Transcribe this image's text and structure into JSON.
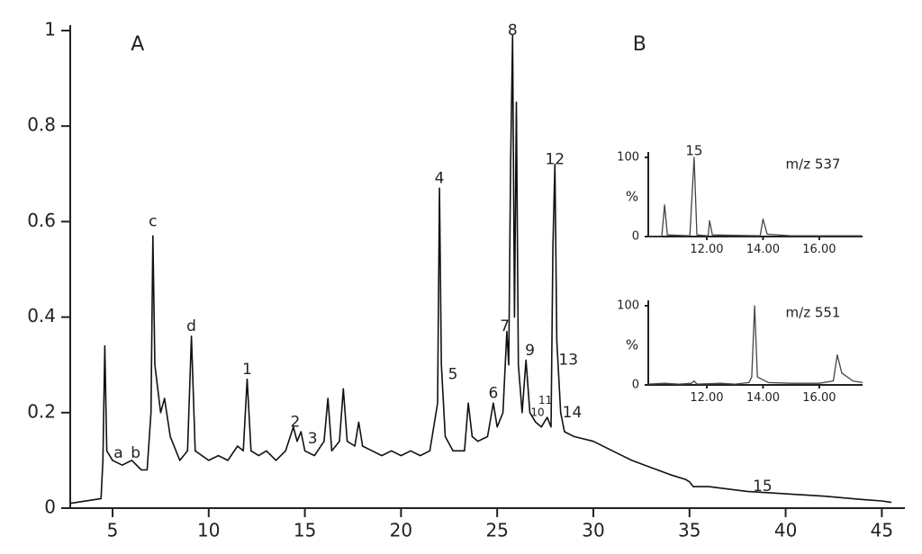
{
  "chart_data": [
    {
      "type": "line",
      "color": "#111111",
      "x": [
        2.8,
        4.4,
        4.5,
        4.6,
        4.7,
        5.0,
        5.5,
        6.0,
        6.5,
        6.8,
        7.0,
        7.1,
        7.2,
        7.5,
        7.7,
        8.0,
        8.5,
        8.9,
        9.1,
        9.3,
        10,
        10.5,
        11,
        11.5,
        11.8,
        12.0,
        12.2,
        12.6,
        13,
        13.5,
        14,
        14.4,
        14.6,
        14.8,
        15.0,
        15.5,
        16.0,
        16.2,
        16.4,
        16.8,
        17.0,
        17.2,
        17.6,
        17.8,
        18.0,
        18.5,
        19,
        19.5,
        20,
        20.5,
        21,
        21.5,
        21.9,
        22.0,
        22.1,
        22.3,
        22.7,
        23.3,
        23.5,
        23.7,
        24,
        24.5,
        24.8,
        25.0,
        25.3,
        25.5,
        25.6,
        25.7,
        25.8,
        25.9,
        26.0,
        26.1,
        26.3,
        26.5,
        26.7,
        27,
        27.3,
        27.6,
        27.8,
        27.9,
        28.0,
        28.1,
        28.3,
        28.5,
        29,
        30,
        31,
        32,
        33,
        34,
        34.8,
        35,
        35.2,
        36,
        38,
        40,
        42,
        44,
        45,
        45.5
      ],
      "values": [
        0.01,
        0.02,
        0.1,
        0.34,
        0.12,
        0.1,
        0.09,
        0.1,
        0.08,
        0.08,
        0.2,
        0.57,
        0.3,
        0.2,
        0.23,
        0.15,
        0.1,
        0.12,
        0.36,
        0.12,
        0.1,
        0.11,
        0.1,
        0.13,
        0.12,
        0.27,
        0.12,
        0.11,
        0.12,
        0.1,
        0.12,
        0.17,
        0.14,
        0.16,
        0.12,
        0.11,
        0.14,
        0.23,
        0.12,
        0.14,
        0.25,
        0.14,
        0.13,
        0.18,
        0.13,
        0.12,
        0.11,
        0.12,
        0.11,
        0.12,
        0.11,
        0.12,
        0.22,
        0.67,
        0.3,
        0.15,
        0.12,
        0.12,
        0.22,
        0.15,
        0.14,
        0.15,
        0.22,
        0.17,
        0.2,
        0.37,
        0.3,
        0.72,
        0.99,
        0.4,
        0.85,
        0.3,
        0.2,
        0.31,
        0.2,
        0.18,
        0.17,
        0.19,
        0.17,
        0.55,
        0.72,
        0.35,
        0.2,
        0.16,
        0.15,
        0.14,
        0.12,
        0.1,
        0.085,
        0.07,
        0.06,
        0.055,
        0.045,
        0.045,
        0.035,
        0.03,
        0.025,
        0.018,
        0.015,
        0.012
      ],
      "xlim": [
        2.8,
        46.2
      ],
      "ylim": [
        0,
        1
      ],
      "xticks": [
        5,
        10,
        15,
        20,
        25,
        30,
        35,
        40,
        45
      ],
      "yticks": [
        0,
        0.2,
        0.4,
        0.6,
        0.8,
        1
      ],
      "annotations": [
        {
          "text": "A",
          "x": 6.3,
          "y": 0.97
        },
        {
          "text": "B",
          "x": 32.4,
          "y": 0.97
        },
        {
          "text": "a",
          "x": 5.3,
          "y": 0.115
        },
        {
          "text": "b",
          "x": 6.2,
          "y": 0.115
        },
        {
          "text": "c",
          "x": 7.1,
          "y": 0.6
        },
        {
          "text": "d",
          "x": 9.1,
          "y": 0.38
        },
        {
          "text": "1",
          "x": 12,
          "y": 0.29
        },
        {
          "text": "2",
          "x": 14.5,
          "y": 0.18
        },
        {
          "text": "3",
          "x": 15.4,
          "y": 0.145
        },
        {
          "text": "4",
          "x": 22,
          "y": 0.69
        },
        {
          "text": "5",
          "x": 22.7,
          "y": 0.28
        },
        {
          "text": "6",
          "x": 24.8,
          "y": 0.24
        },
        {
          "text": "7",
          "x": 25.4,
          "y": 0.38
        },
        {
          "text": "8",
          "x": 25.8,
          "y": 1.0
        },
        {
          "text": "9",
          "x": 26.7,
          "y": 0.33
        },
        {
          "text": "10",
          "x": 27.1,
          "y": 0.2
        },
        {
          "text": "11",
          "x": 27.5,
          "y": 0.225
        },
        {
          "text": "12",
          "x": 28,
          "y": 0.73
        },
        {
          "text": "13",
          "x": 28.7,
          "y": 0.31
        },
        {
          "text": "14",
          "x": 28.9,
          "y": 0.2
        },
        {
          "text": "15",
          "x": 38.8,
          "y": 0.045
        }
      ]
    },
    {
      "type": "line",
      "color": "#444444",
      "title": "m/z 537",
      "ylabel": "%",
      "x": [
        9.92,
        10.4,
        10.5,
        10.6,
        11.4,
        11.55,
        11.65,
        12.05,
        12.1,
        12.2,
        13.9,
        14.0,
        14.15,
        15,
        17.5
      ],
      "values": [
        0,
        0,
        40,
        2,
        1,
        100,
        2,
        1,
        20,
        2,
        1,
        22,
        3,
        1,
        1
      ],
      "annotations": [
        {
          "text": "15",
          "x": 11.55,
          "y": 108
        }
      ],
      "xlim": [
        9.92,
        17.54
      ],
      "ylim": [
        0,
        100
      ],
      "xticks": [
        {
          "value": 12,
          "label": "12.00"
        },
        {
          "value": 14,
          "label": "14.00"
        },
        {
          "value": 16,
          "label": "16.00"
        }
      ],
      "yticks": [
        0,
        100
      ]
    },
    {
      "type": "line",
      "color": "#444444",
      "title": "m/z 551",
      "ylabel": "%",
      "x": [
        9.92,
        10.5,
        11.0,
        11.45,
        11.55,
        11.65,
        12.5,
        13.0,
        13.5,
        13.6,
        13.7,
        13.8,
        14.2,
        15.0,
        16.0,
        16.5,
        16.64,
        16.8,
        17.2,
        17.54
      ],
      "values": [
        1,
        2,
        1,
        2,
        5,
        1,
        2,
        1,
        3,
        10,
        100,
        10,
        3,
        2,
        2,
        5,
        38,
        15,
        5,
        3
      ],
      "xlim": [
        9.92,
        17.54
      ],
      "ylim": [
        0,
        100
      ],
      "xticks": [
        {
          "value": 12,
          "label": "12.00"
        },
        {
          "value": 14,
          "label": "14.00"
        },
        {
          "value": 16,
          "label": "16.00"
        }
      ],
      "yticks": [
        0,
        100
      ]
    }
  ]
}
